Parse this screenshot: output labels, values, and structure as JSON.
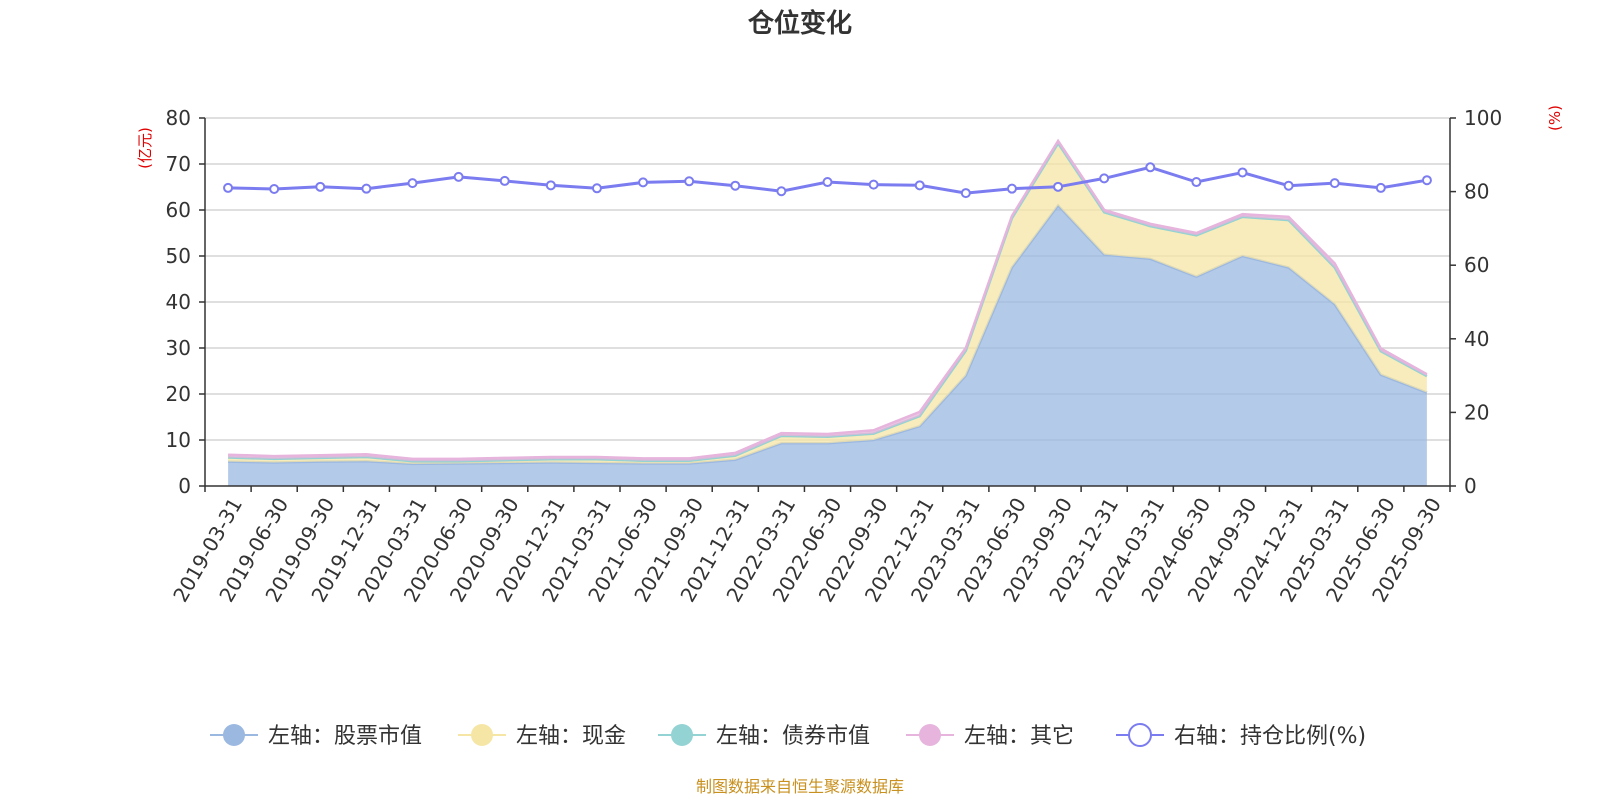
{
  "chart_data": {
    "type": "area",
    "title": "仓位变化",
    "left_unit": "(亿元)",
    "right_unit": "(%)",
    "left_axis": {
      "min": 0,
      "max": 80,
      "ticks": [
        "0",
        "10",
        "20",
        "30",
        "40",
        "50",
        "60",
        "70",
        "80"
      ]
    },
    "right_axis": {
      "min": 0,
      "max": 100,
      "ticks": [
        "0",
        "20",
        "40",
        "60",
        "80",
        "100"
      ]
    },
    "categories": [
      "2019-03-31",
      "2019-06-30",
      "2019-09-30",
      "2019-12-31",
      "2020-03-31",
      "2020-06-30",
      "2020-09-30",
      "2020-12-31",
      "2021-03-31",
      "2021-06-30",
      "2021-09-30",
      "2021-12-31",
      "2022-03-31",
      "2022-06-30",
      "2022-09-30",
      "2022-12-31",
      "2023-03-31",
      "2023-06-30",
      "2023-09-30",
      "2023-12-31",
      "2024-03-31",
      "2024-06-30",
      "2024-09-30",
      "2024-12-31",
      "2025-03-31",
      "2025-06-30",
      "2025-09-30"
    ],
    "grid": true,
    "legend_position": "bottom",
    "series": [
      {
        "name": "左轴：股票市值",
        "axis": "left",
        "color": "#9bb8e1",
        "values": [
          5.3,
          5.1,
          5.3,
          5.4,
          4.8,
          4.9,
          5.0,
          5.1,
          5.0,
          4.9,
          4.9,
          5.7,
          9.3,
          9.3,
          10.0,
          13.0,
          24.0,
          47.5,
          61.0,
          50.3,
          49.4,
          45.5,
          50.0,
          47.5,
          39.5,
          24.2,
          20.3
        ]
      },
      {
        "name": "左轴：现金",
        "axis": "left",
        "color": "#f6e6a6",
        "values": [
          0.9,
          0.8,
          0.8,
          0.9,
          0.6,
          0.5,
          0.6,
          0.7,
          0.8,
          0.6,
          0.6,
          0.9,
          1.6,
          1.4,
          1.4,
          2.2,
          5.4,
          10.7,
          13.5,
          9.2,
          7.1,
          9.0,
          8.5,
          10.3,
          8.0,
          5.1,
          3.6
        ]
      },
      {
        "name": "左轴：债券市值",
        "axis": "left",
        "color": "#94d3d3",
        "values": [
          0,
          0,
          0,
          0,
          0,
          0,
          0,
          0,
          0,
          0,
          0,
          0,
          0,
          0,
          0,
          0,
          0,
          0,
          0,
          0,
          0,
          0,
          0,
          0,
          0,
          0,
          0
        ]
      },
      {
        "name": "左轴：其它",
        "axis": "left",
        "color": "#e6b4dc",
        "values": [
          0.6,
          0.6,
          0.6,
          0.6,
          0.5,
          0.5,
          0.5,
          0.5,
          0.5,
          0.5,
          0.5,
          0.6,
          0.6,
          0.6,
          0.7,
          0.9,
          0.6,
          0.5,
          0.5,
          0.5,
          0.5,
          0.5,
          0.6,
          0.7,
          0.9,
          0.6,
          0.4
        ]
      },
      {
        "name": "右轴：持仓比例(%)",
        "axis": "right",
        "color": "#7b7cf0",
        "values": [
          81.0,
          80.7,
          81.3,
          80.8,
          82.3,
          84.0,
          82.9,
          81.7,
          80.9,
          82.5,
          82.8,
          81.6,
          80.1,
          82.6,
          81.9,
          81.7,
          79.6,
          80.8,
          81.3,
          83.6,
          86.6,
          82.6,
          85.2,
          81.6,
          82.3,
          81.0,
          83.1
        ]
      }
    ]
  },
  "source_note": "制图数据来自恒生聚源数据库"
}
